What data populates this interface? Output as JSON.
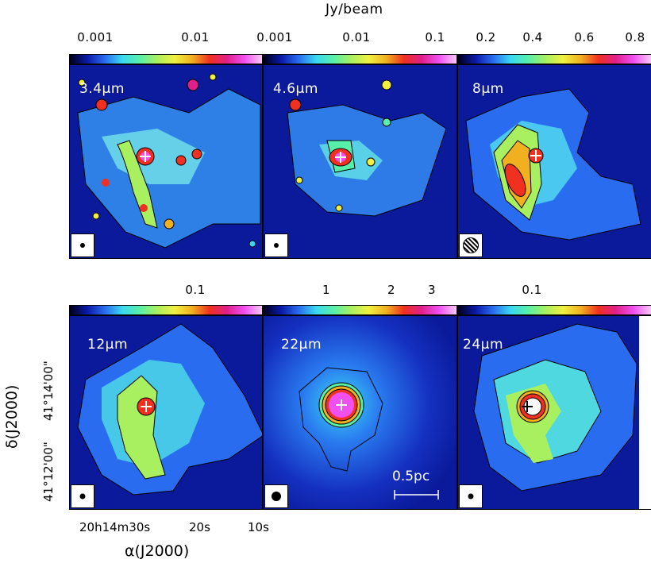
{
  "figure": {
    "colorbar_unit": "Jy/beam",
    "colorbar_top_row": [
      {
        "ticks": [
          "0.001",
          "0.01"
        ]
      },
      {
        "ticks": [
          "0.001",
          "0.01",
          "0.1"
        ]
      },
      {
        "ticks": [
          "0.2",
          "0.4",
          "0.6",
          "0.8"
        ]
      }
    ],
    "colorbar_bottom_row": [
      {
        "ticks": [
          "0.1"
        ]
      },
      {
        "ticks": [
          "1",
          "2",
          "3"
        ]
      },
      {
        "ticks": [
          "0.1"
        ]
      }
    ],
    "panels": [
      {
        "band": "3.4μm"
      },
      {
        "band": "4.6μm"
      },
      {
        "band": "8μm"
      },
      {
        "band": "12μm"
      },
      {
        "band": "22μm"
      },
      {
        "band": "24μm"
      }
    ],
    "scale_bar_label": "0.5pc",
    "x_axis_title": "α(J2000)",
    "y_axis_title": "δ(J2000)",
    "ra_ticks": [
      "20h14m30s",
      "20s",
      "10s"
    ],
    "dec_ticks": [
      "41°12'00\"",
      "41°14'00\""
    ]
  }
}
